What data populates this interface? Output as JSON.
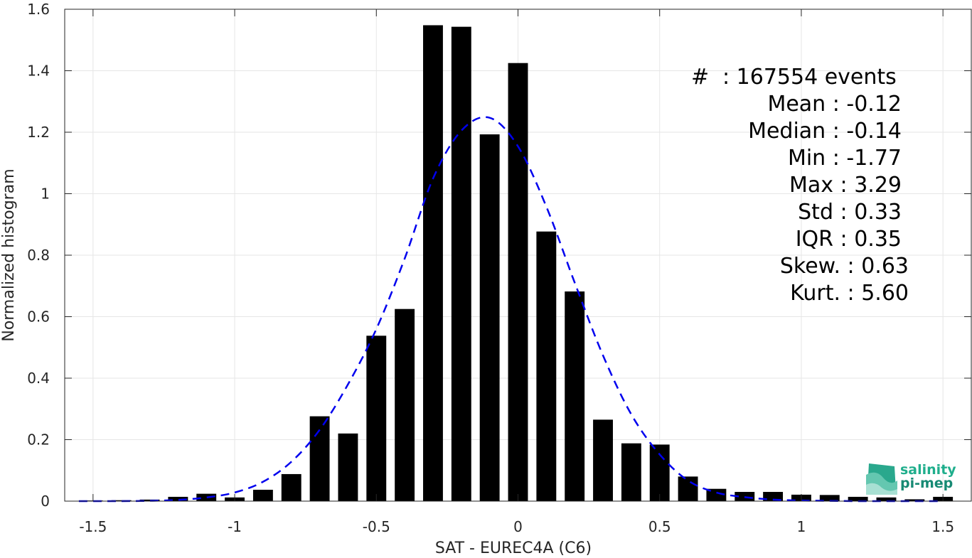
{
  "chart_data": {
    "type": "bar",
    "xlabel": "SAT - EUREC4A (C6)",
    "ylabel": "Normalized histogram",
    "xlim": [
      -1.6,
      1.6
    ],
    "ylim": [
      0,
      1.6
    ],
    "xticks": [
      -1.5,
      -1,
      -0.5,
      0,
      0.5,
      1,
      1.5
    ],
    "xtick_labels": [
      "-1.5",
      "-1",
      "-0.5",
      "0",
      "0.5",
      "1",
      "1.5"
    ],
    "yticks": [
      0,
      0.2,
      0.4,
      0.6,
      0.8,
      1,
      1.2,
      1.4,
      1.6
    ],
    "ytick_labels": [
      "0",
      "0.2",
      "0.4",
      "0.6",
      "0.8",
      "1",
      "1.2",
      "1.4",
      "1.6"
    ],
    "grid": true,
    "bar_color": "#000000",
    "bar_width": 0.07,
    "bars": {
      "x": [
        -1.5,
        -1.4,
        -1.3,
        -1.2,
        -1.1,
        -1.0,
        -0.9,
        -0.8,
        -0.7,
        -0.6,
        -0.5,
        -0.4,
        -0.3,
        -0.2,
        -0.1,
        0.0,
        0.1,
        0.2,
        0.3,
        0.4,
        0.5,
        0.6,
        0.7,
        0.8,
        0.9,
        1.0,
        1.1,
        1.2,
        1.3,
        1.4,
        1.5
      ],
      "y": [
        0.002,
        0.003,
        0.005,
        0.014,
        0.024,
        0.012,
        0.037,
        0.088,
        0.276,
        0.22,
        0.538,
        0.625,
        1.548,
        1.543,
        1.193,
        1.425,
        0.877,
        0.682,
        0.265,
        0.188,
        0.184,
        0.08,
        0.04,
        0.03,
        0.03,
        0.021,
        0.02,
        0.014,
        0.012,
        0.006,
        0.014
      ]
    },
    "fit": {
      "style": "dashed",
      "color": "#0000ee",
      "x": [
        -1.55,
        -1.4,
        -1.3,
        -1.2,
        -1.1,
        -1.0,
        -0.9,
        -0.8,
        -0.7,
        -0.6,
        -0.5,
        -0.4,
        -0.3,
        -0.2,
        -0.1,
        0.0,
        0.1,
        0.2,
        0.3,
        0.4,
        0.5,
        0.6,
        0.7,
        0.8,
        0.9,
        1.0,
        1.1,
        1.2,
        1.3,
        1.4,
        1.5
      ],
      "y": [
        0.0,
        0.0,
        0.001,
        0.004,
        0.012,
        0.028,
        0.063,
        0.128,
        0.232,
        0.38,
        0.56,
        0.789,
        1.049,
        1.205,
        1.247,
        1.154,
        0.958,
        0.711,
        0.474,
        0.282,
        0.152,
        0.067,
        0.028,
        0.013,
        0.005,
        0.002,
        0.001,
        0.0,
        0.0,
        0.0,
        0.0
      ]
    }
  },
  "stats": [
    {
      "label": "#",
      "value": ": 167554 events"
    },
    {
      "label": "Mean",
      "value": ": -0.12"
    },
    {
      "label": "Median",
      "value": ": -0.14"
    },
    {
      "label": "Min",
      "value": ": -1.77"
    },
    {
      "label": "Max",
      "value": ": 3.29"
    },
    {
      "label": "Std",
      "value": ": 0.33"
    },
    {
      "label": "IQR",
      "value": ": 0.35"
    },
    {
      "label": "Skew.",
      "value": ": 0.63"
    },
    {
      "label": "Kurt.",
      "value": ": 5.60"
    }
  ],
  "logo": {
    "line1": "salinity",
    "line2": "pi-mep",
    "color1": "#1fae8c",
    "color2": "#178a74"
  }
}
